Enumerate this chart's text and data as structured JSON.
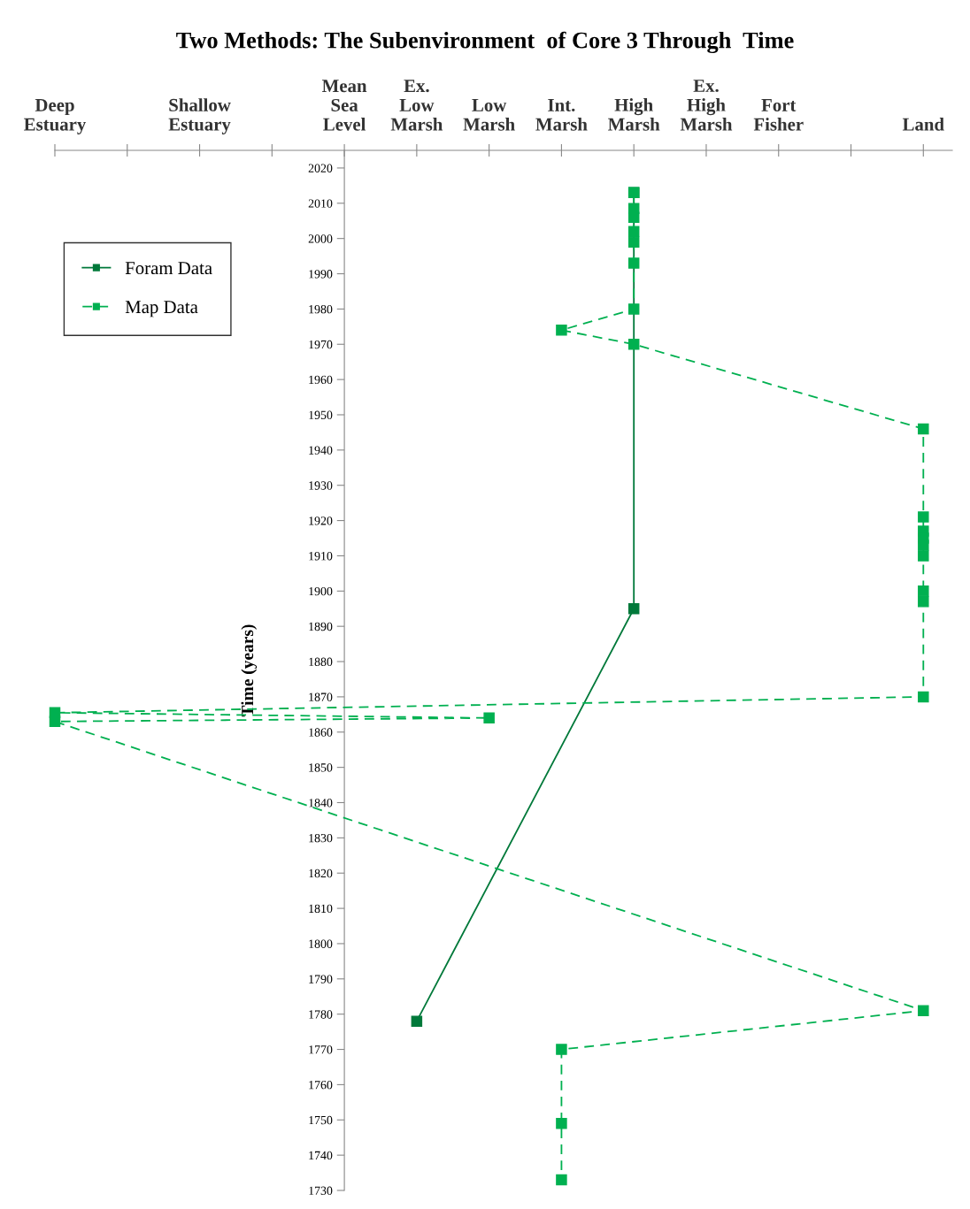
{
  "chart_data": {
    "type": "line",
    "title": "Two Methods: The Subenvironment  of Core 3 Through  Time",
    "ylabel": "Time (years)",
    "categories": [
      "Deep\nEstuary",
      null,
      "Shallow\nEstuary",
      null,
      "Mean\nSea\nLevel",
      "Ex.\nLow\nMarsh",
      "Low\nMarsh",
      "Int.\nMarsh",
      "High\nMarsh",
      "Ex.\nHigh\nMarsh",
      "Fort\nFisher",
      null,
      "Land"
    ],
    "ylim": [
      1730,
      2025
    ],
    "yticks": [
      1730,
      1740,
      1750,
      1760,
      1770,
      1780,
      1790,
      1800,
      1810,
      1820,
      1830,
      1840,
      1850,
      1860,
      1870,
      1880,
      1890,
      1900,
      1910,
      1920,
      1930,
      1940,
      1950,
      1960,
      1970,
      1980,
      1990,
      2000,
      2010,
      2020
    ],
    "marker": "square",
    "legend": "top left",
    "grid": false,
    "series": [
      {
        "name": "Foram Data",
        "color": "#00793a",
        "line_style": "solid",
        "x": [
          "Ex.\nLow\nMarsh",
          "High\nMarsh",
          "High\nMarsh"
        ],
        "values": [
          1778,
          1895,
          2013
        ]
      },
      {
        "name": "Map Data",
        "color": "#00b050",
        "line_style": "dashed",
        "x": [
          "High\nMarsh",
          "High\nMarsh",
          "High\nMarsh",
          "High\nMarsh",
          "High\nMarsh",
          "High\nMarsh",
          "High\nMarsh",
          "Int.\nMarsh",
          "High\nMarsh",
          "Land",
          "Land",
          "Land",
          "Land",
          "Land",
          "Land",
          "Land",
          "Land",
          "Land",
          "Deep\nEstuary",
          "Low\nMarsh",
          "Deep\nEstuary",
          "Land",
          "Int.\nMarsh",
          "Int.\nMarsh",
          "Int.\nMarsh"
        ],
        "values": [
          2013,
          2008.5,
          2006,
          2002,
          1999,
          1993,
          1980,
          1974,
          1970,
          1946,
          1921,
          1917,
          1915,
          1913,
          1910,
          1900,
          1897,
          1870,
          1865.5,
          1864,
          1863,
          1781,
          1770,
          1749,
          1733
        ]
      }
    ]
  }
}
